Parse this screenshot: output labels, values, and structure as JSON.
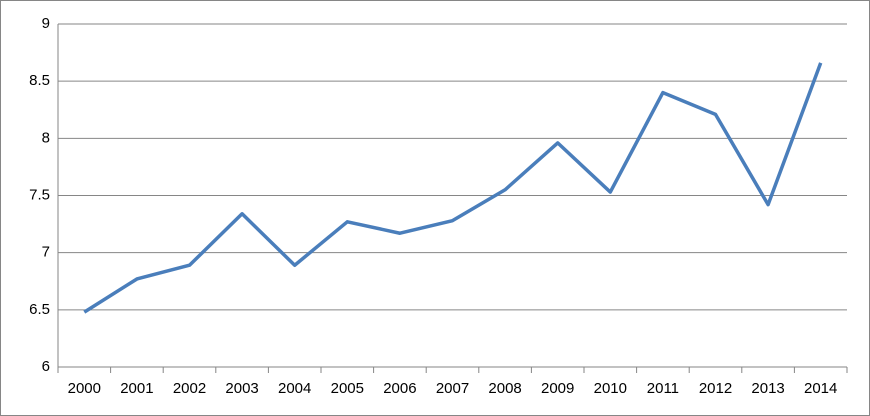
{
  "chart_data": {
    "type": "line",
    "categories": [
      "2000",
      "2001",
      "2002",
      "2003",
      "2004",
      "2005",
      "2006",
      "2007",
      "2008",
      "2009",
      "2010",
      "2011",
      "2012",
      "2013",
      "2014"
    ],
    "series": [
      {
        "color": "#4a7ebb",
        "values": [
          6.48,
          6.77,
          6.89,
          7.34,
          6.89,
          7.27,
          7.17,
          7.28,
          7.55,
          7.96,
          7.53,
          8.4,
          8.21,
          7.42,
          8.66
        ]
      }
    ],
    "ylim": [
      6,
      9
    ],
    "yticks": [
      6,
      6.5,
      7,
      7.5,
      8,
      8.5,
      9
    ],
    "grid": true
  }
}
